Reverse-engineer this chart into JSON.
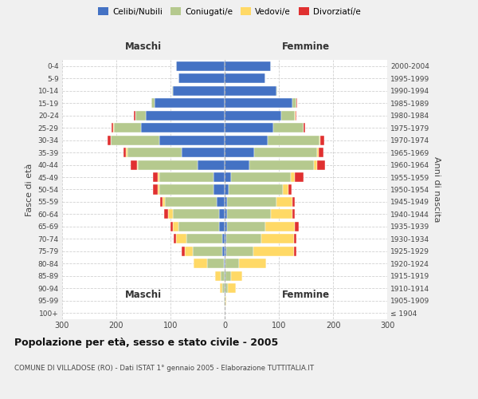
{
  "age_groups": [
    "100+",
    "95-99",
    "90-94",
    "85-89",
    "80-84",
    "75-79",
    "70-74",
    "65-69",
    "60-64",
    "55-59",
    "50-54",
    "45-49",
    "40-44",
    "35-39",
    "30-34",
    "25-29",
    "20-24",
    "15-19",
    "10-14",
    "5-9",
    "0-4"
  ],
  "birth_years": [
    "≤ 1904",
    "1905-1909",
    "1910-1914",
    "1915-1919",
    "1920-1924",
    "1925-1929",
    "1930-1934",
    "1935-1939",
    "1940-1944",
    "1945-1949",
    "1950-1954",
    "1955-1959",
    "1960-1964",
    "1965-1969",
    "1970-1974",
    "1975-1979",
    "1980-1984",
    "1985-1989",
    "1990-1994",
    "1995-1999",
    "2000-2004"
  ],
  "male_celibi": [
    0,
    0,
    0,
    0,
    2,
    4,
    5,
    10,
    10,
    15,
    20,
    20,
    50,
    80,
    120,
    155,
    145,
    130,
    95,
    85,
    90
  ],
  "male_coniugati": [
    0,
    1,
    4,
    8,
    30,
    55,
    65,
    75,
    85,
    95,
    100,
    100,
    110,
    100,
    90,
    50,
    20,
    5,
    2,
    0,
    0
  ],
  "male_vedovi": [
    0,
    0,
    5,
    10,
    25,
    15,
    20,
    10,
    10,
    5,
    4,
    3,
    2,
    2,
    1,
    1,
    0,
    0,
    0,
    0,
    0
  ],
  "male_divorziati": [
    0,
    0,
    0,
    0,
    0,
    5,
    4,
    5,
    7,
    4,
    8,
    10,
    12,
    5,
    5,
    3,
    2,
    1,
    0,
    0,
    0
  ],
  "female_celibi": [
    0,
    0,
    1,
    2,
    2,
    3,
    3,
    5,
    5,
    5,
    8,
    12,
    45,
    55,
    80,
    90,
    105,
    125,
    95,
    75,
    85
  ],
  "female_coniugati": [
    0,
    1,
    5,
    10,
    25,
    50,
    65,
    70,
    80,
    90,
    100,
    110,
    120,
    115,
    95,
    55,
    25,
    8,
    2,
    0,
    0
  ],
  "female_vedovi": [
    0,
    2,
    15,
    20,
    50,
    75,
    60,
    55,
    40,
    30,
    10,
    8,
    5,
    4,
    2,
    1,
    1,
    0,
    0,
    0,
    0
  ],
  "female_divorziati": [
    0,
    0,
    0,
    0,
    0,
    5,
    4,
    7,
    5,
    5,
    5,
    15,
    15,
    8,
    7,
    2,
    2,
    1,
    0,
    0,
    0
  ],
  "colors": {
    "celibi": "#4472C4",
    "coniugati": "#b5c98e",
    "vedovi": "#ffd966",
    "divorziati": "#e03030"
  },
  "title": "Popolazione per età, sesso e stato civile - 2005",
  "subtitle": "COMUNE DI VILLADOSE (RO) - Dati ISTAT 1° gennaio 2005 - Elaborazione TUTTITALIA.IT",
  "xlabel_left": "Maschi",
  "xlabel_right": "Femmine",
  "ylabel_left": "Fasce di età",
  "ylabel_right": "Anni di nascita",
  "xlim": 300,
  "bg_color": "#f0f0f0",
  "plot_bg": "#ffffff",
  "grid_color": "#cccccc"
}
